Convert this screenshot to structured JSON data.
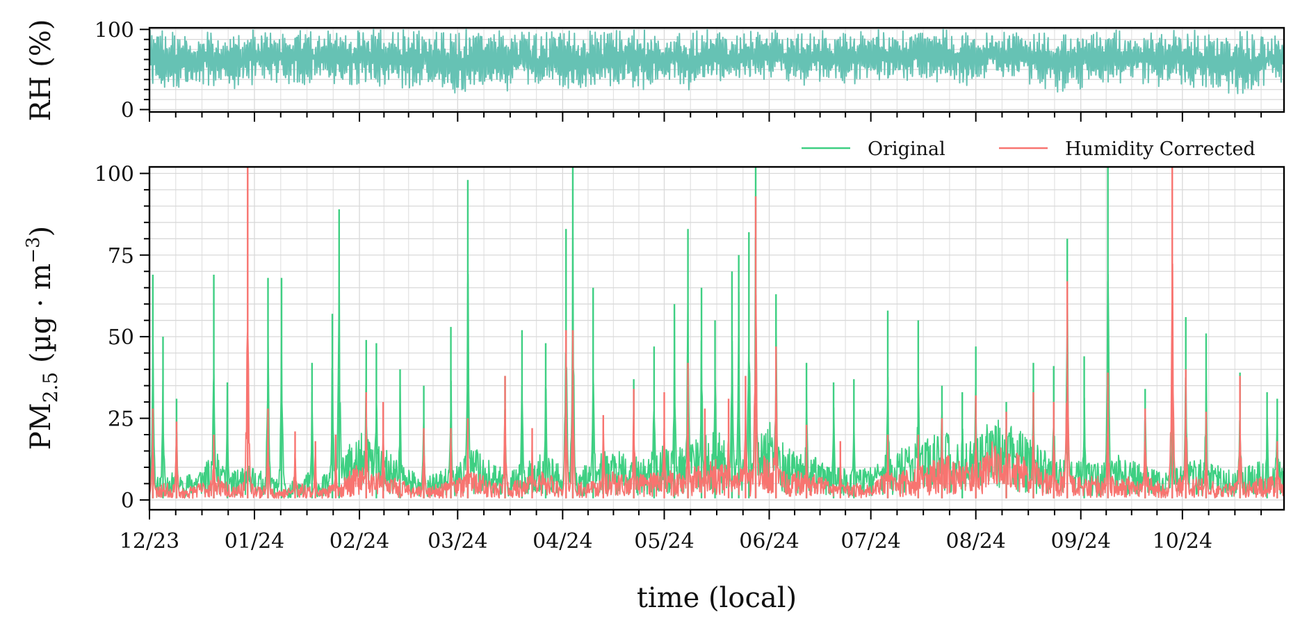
{
  "chart_data": [
    {
      "panel": "top",
      "type": "line",
      "ylabel": "RH (%)",
      "ylim": [
        -3,
        102
      ],
      "yticks": [
        0,
        100
      ],
      "y_minor_step": 12.5,
      "grid": true,
      "color": "#66c2b4",
      "x_range": [
        "2023-12-01",
        "2024-10-31"
      ],
      "series": [
        {
          "data_x": [
            "2023-12-01",
            "2023-12-05",
            "2023-12-10",
            "2023-12-15",
            "2023-12-20",
            "2023-12-25",
            "2023-12-30",
            "2024-01-05",
            "2024-01-10",
            "2024-01-15",
            "2024-01-20",
            "2024-01-25",
            "2024-01-30",
            "2024-02-05",
            "2024-02-10",
            "2024-02-15",
            "2024-02-20",
            "2024-02-25",
            "2024-03-01",
            "2024-03-05",
            "2024-03-10",
            "2024-03-15",
            "2024-03-20",
            "2024-03-25",
            "2024-03-30",
            "2024-04-05",
            "2024-04-10",
            "2024-04-15",
            "2024-04-20",
            "2024-04-25",
            "2024-04-30",
            "2024-05-05",
            "2024-05-10",
            "2024-05-15",
            "2024-05-20",
            "2024-05-25",
            "2024-05-30",
            "2024-06-05",
            "2024-06-10",
            "2024-06-15",
            "2024-06-20",
            "2024-06-25",
            "2024-06-30",
            "2024-07-05",
            "2024-07-10",
            "2024-07-15",
            "2024-07-20",
            "2024-07-25",
            "2024-07-30",
            "2024-08-05",
            "2024-08-10",
            "2024-08-15",
            "2024-08-20",
            "2024-08-25",
            "2024-08-30",
            "2024-09-05",
            "2024-09-10",
            "2024-09-15",
            "2024-09-20",
            "2024-09-25",
            "2024-09-30",
            "2024-10-05",
            "2024-10-10",
            "2024-10-15",
            "2024-10-20",
            "2024-10-25",
            "2024-10-31"
          ],
          "min_y": [
            25,
            22,
            25,
            28,
            30,
            25,
            30,
            35,
            30,
            30,
            38,
            32,
            30,
            28,
            30,
            26,
            30,
            25,
            20,
            25,
            30,
            22,
            26,
            28,
            30,
            22,
            25,
            28,
            30,
            25,
            32,
            30,
            20,
            28,
            30,
            35,
            38,
            35,
            30,
            32,
            35,
            30,
            38,
            32,
            35,
            38,
            35,
            32,
            30,
            40,
            35,
            32,
            28,
            22,
            25,
            28,
            30,
            35,
            32,
            25,
            30,
            22,
            28,
            20,
            15,
            30,
            35
          ],
          "max_y": [
            100,
            98,
            95,
            90,
            100,
            92,
            100,
            98,
            100,
            100,
            95,
            100,
            100,
            100,
            98,
            100,
            100,
            95,
            100,
            100,
            98,
            100,
            100,
            95,
            100,
            100,
            100,
            98,
            100,
            100,
            95,
            100,
            100,
            100,
            100,
            100,
            100,
            98,
            100,
            100,
            95,
            100,
            100,
            100,
            98,
            100,
            100,
            100,
            95,
            100,
            100,
            98,
            100,
            95,
            100,
            98,
            100,
            100,
            95,
            100,
            98,
            100,
            95,
            100,
            98,
            95,
            96
          ]
        }
      ]
    },
    {
      "panel": "bottom",
      "type": "line",
      "xlabel": "time (local)",
      "ylabel_main": "PM",
      "ylabel_sub": "2.5",
      "ylabel_units": "(µg · m",
      "ylabel_sup": "−3",
      "ylabel_close": ")",
      "ylim": [
        -3,
        102
      ],
      "yticks": [
        0,
        25,
        50,
        75,
        100
      ],
      "y_minor_step": 5,
      "grid": true,
      "x_range": [
        "2023-12-01",
        "2024-10-31"
      ],
      "x_tick_labels": [
        {
          "date": "2023-12-01",
          "label": "12/23"
        },
        {
          "date": "2024-01-01",
          "label": "01/24"
        },
        {
          "date": "2024-02-01",
          "label": "02/24"
        },
        {
          "date": "2024-03-01",
          "label": "03/24"
        },
        {
          "date": "2024-04-01",
          "label": "04/24"
        },
        {
          "date": "2024-05-01",
          "label": "05/24"
        },
        {
          "date": "2024-06-01",
          "label": "06/24"
        },
        {
          "date": "2024-07-01",
          "label": "07/24"
        },
        {
          "date": "2024-08-01",
          "label": "08/24"
        },
        {
          "date": "2024-09-01",
          "label": "09/24"
        },
        {
          "date": "2024-10-01",
          "label": "10/24"
        }
      ],
      "legend": {
        "placement": "top-right, above the axes"
      },
      "series": [
        {
          "name": "Original",
          "color": "#3ecf82",
          "baseline": [
            3,
            5,
            4,
            6,
            8,
            5,
            6,
            4,
            3,
            5,
            4,
            6,
            12,
            10,
            8,
            6,
            4,
            5,
            7,
            9,
            6,
            5,
            7,
            8,
            6,
            5,
            8,
            9,
            7,
            8,
            10,
            9,
            11,
            12,
            8,
            10,
            14,
            9,
            8,
            7,
            6,
            5,
            6,
            8,
            9,
            10,
            12,
            11,
            10,
            14,
            13,
            11,
            9,
            8,
            7,
            6,
            8,
            7,
            6,
            5,
            6,
            7,
            6,
            5,
            6,
            7,
            8
          ],
          "peaks_x": [
            "2023-12-02",
            "2023-12-05",
            "2023-12-09",
            "2023-12-20",
            "2023-12-24",
            "2023-12-30",
            "2024-01-05",
            "2024-01-09",
            "2024-01-18",
            "2024-01-24",
            "2024-01-26",
            "2024-02-03",
            "2024-02-06",
            "2024-02-13",
            "2024-02-20",
            "2024-02-28",
            "2024-03-04",
            "2024-03-15",
            "2024-03-20",
            "2024-03-27",
            "2024-04-02",
            "2024-04-04",
            "2024-04-10",
            "2024-04-22",
            "2024-04-28",
            "2024-05-04",
            "2024-05-08",
            "2024-05-12",
            "2024-05-16",
            "2024-05-21",
            "2024-05-23",
            "2024-05-26",
            "2024-05-28",
            "2024-06-03",
            "2024-06-12",
            "2024-06-20",
            "2024-06-26",
            "2024-07-06",
            "2024-07-15",
            "2024-07-22",
            "2024-07-28",
            "2024-08-01",
            "2024-08-10",
            "2024-08-18",
            "2024-08-24",
            "2024-08-28",
            "2024-09-02",
            "2024-09-09",
            "2024-09-20",
            "2024-09-28",
            "2024-10-02",
            "2024-10-08",
            "2024-10-18",
            "2024-10-26",
            "2024-10-29"
          ],
          "peaks_y": [
            69,
            50,
            31,
            69,
            36,
            13,
            68,
            68,
            42,
            57,
            89,
            49,
            48,
            40,
            35,
            53,
            98,
            38,
            52,
            48,
            83,
            102,
            65,
            37,
            47,
            60,
            83,
            65,
            55,
            70,
            75,
            82,
            102,
            63,
            42,
            36,
            37,
            58,
            55,
            35,
            33,
            47,
            30,
            42,
            41,
            80,
            44,
            102,
            34,
            36,
            56,
            51,
            39,
            33,
            31
          ]
        },
        {
          "name": "Humidity Corrected",
          "color": "#f87470",
          "baseline": [
            2,
            3,
            2,
            3,
            4,
            3,
            3,
            2,
            2,
            3,
            2,
            3,
            6,
            5,
            4,
            3,
            2,
            3,
            4,
            5,
            3,
            3,
            4,
            5,
            3,
            3,
            4,
            5,
            4,
            5,
            6,
            5,
            6,
            7,
            5,
            6,
            8,
            5,
            5,
            4,
            3,
            3,
            3,
            5,
            5,
            6,
            8,
            7,
            6,
            10,
            9,
            7,
            6,
            5,
            4,
            4,
            5,
            4,
            4,
            3,
            4,
            4,
            3,
            3,
            4,
            4,
            5
          ],
          "peaks_x": [
            "2023-12-02",
            "2023-12-09",
            "2023-12-20",
            "2023-12-30",
            "2024-01-05",
            "2024-01-13",
            "2024-01-19",
            "2024-01-25",
            "2024-02-03",
            "2024-02-08",
            "2024-02-20",
            "2024-02-28",
            "2024-03-04",
            "2024-03-15",
            "2024-03-23",
            "2024-04-02",
            "2024-04-04",
            "2024-04-13",
            "2024-04-22",
            "2024-05-01",
            "2024-05-08",
            "2024-05-13",
            "2024-05-20",
            "2024-05-25",
            "2024-05-28",
            "2024-06-03",
            "2024-06-12",
            "2024-06-22",
            "2024-07-06",
            "2024-07-15",
            "2024-07-22",
            "2024-08-01",
            "2024-08-10",
            "2024-08-18",
            "2024-08-24",
            "2024-08-28",
            "2024-09-09",
            "2024-09-20",
            "2024-09-28",
            "2024-10-02",
            "2024-10-08",
            "2024-10-18",
            "2024-10-29"
          ],
          "peaks_y": [
            28,
            24,
            20,
            102,
            28,
            21,
            18,
            20,
            33,
            30,
            22,
            22,
            25,
            38,
            22,
            52,
            52,
            26,
            34,
            33,
            42,
            28,
            31,
            38,
            93,
            47,
            23,
            18,
            20,
            20,
            25,
            32,
            27,
            33,
            30,
            67,
            39,
            28,
            102,
            40,
            27,
            38,
            18
          ]
        }
      ]
    }
  ]
}
